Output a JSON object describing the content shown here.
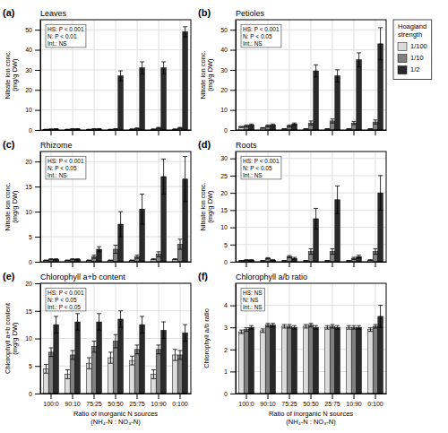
{
  "chart_data": [
    {
      "type": "bar",
      "title": "Leaves",
      "annotations": [
        "(a)",
        "HS: P < 0.001\nN: P < 0.01\nInt.: NS"
      ],
      "ylabel": "Nitrate ion conc.\n(mg/g DW)",
      "categories": [
        "100:0",
        "90:10",
        "75:25",
        "50:50",
        "25:75",
        "10:90",
        "0:100"
      ],
      "series": [
        {
          "name": "1/100",
          "color": "#dcdcdc",
          "values": [
            0.3,
            0.3,
            0.3,
            0.3,
            0.4,
            0.4,
            0.4
          ],
          "errors": [
            0.05,
            0.05,
            0.05,
            0.05,
            0.1,
            0.1,
            0.1
          ]
        },
        {
          "name": "1/10",
          "color": "#808080",
          "values": [
            0.4,
            0.5,
            0.5,
            0.5,
            0.8,
            1.0,
            1.0
          ],
          "errors": [
            0.1,
            0.1,
            0.1,
            0.1,
            0.2,
            0.3,
            0.3
          ]
        },
        {
          "name": "1/2",
          "color": "#2a2a2a",
          "values": [
            0.5,
            0.5,
            0.5,
            27.0,
            31.0,
            31.0,
            49.0
          ],
          "errors": [
            0.1,
            0.1,
            0.2,
            2.5,
            3.0,
            3.0,
            2.5
          ]
        }
      ],
      "ylim": [
        0,
        55
      ],
      "yticks": [
        0,
        10,
        20,
        30,
        40,
        50
      ],
      "grid": true,
      "tick_labels": "y"
    },
    {
      "type": "bar",
      "title": "Petioles",
      "annotations": [
        "(b)",
        "HS: P < 0.001\nN: P < 0.05\nInt.: NS"
      ],
      "ylabel": "Nitrate ion conc.\n(mg/g DW)",
      "categories": [
        "100:0",
        "90:10",
        "75:25",
        "50:50",
        "25:75",
        "10:90",
        "0:100"
      ],
      "series": [
        {
          "name": "1/100",
          "color": "#dcdcdc",
          "values": [
            1.5,
            1.0,
            0.5,
            0.5,
            0.5,
            0.5,
            0.5
          ],
          "errors": [
            0.3,
            0.2,
            0.1,
            0.1,
            0.1,
            0.1,
            0.1
          ]
        },
        {
          "name": "1/10",
          "color": "#808080",
          "values": [
            2.0,
            2.0,
            2.0,
            3.5,
            4.5,
            3.5,
            4.0
          ],
          "errors": [
            0.5,
            0.5,
            0.5,
            1.0,
            1.0,
            0.8,
            1.0
          ]
        },
        {
          "name": "1/2",
          "color": "#2a2a2a",
          "values": [
            2.5,
            2.5,
            3.0,
            29.5,
            27.0,
            35.0,
            43.0
          ],
          "errors": [
            0.5,
            0.5,
            0.5,
            3.0,
            3.0,
            3.5,
            8.0
          ]
        }
      ],
      "ylim": [
        0,
        55
      ],
      "yticks": [
        0,
        10,
        20,
        30,
        40,
        50
      ],
      "grid": true,
      "tick_labels": "y",
      "legend": "right",
      "legend_title": "Hoagland\nstrength"
    },
    {
      "type": "bar",
      "title": "Rhizome",
      "annotations": [
        "(c)",
        "HS: P < 0.001\nN: P < 0.05\nInt.: NS"
      ],
      "ylabel": "Nitrate ion conc.\n(mg/g DW)",
      "categories": [
        "100:0",
        "90:10",
        "75:25",
        "50:50",
        "25:75",
        "10:90",
        "0:100"
      ],
      "series": [
        {
          "name": "1/100",
          "color": "#dcdcdc",
          "values": [
            0.3,
            0.3,
            0.3,
            0.3,
            0.3,
            0.5,
            0.5
          ],
          "errors": [
            0.05,
            0.05,
            0.05,
            0.05,
            0.05,
            0.1,
            0.1
          ]
        },
        {
          "name": "1/10",
          "color": "#808080",
          "values": [
            0.5,
            0.5,
            1.0,
            2.5,
            1.0,
            1.5,
            3.5
          ],
          "errors": [
            0.1,
            0.1,
            0.3,
            0.8,
            0.3,
            0.5,
            1.0
          ]
        },
        {
          "name": "1/2",
          "color": "#2a2a2a",
          "values": [
            0.5,
            0.5,
            2.5,
            7.5,
            10.5,
            17.0,
            16.5
          ],
          "errors": [
            0.1,
            0.1,
            0.5,
            2.5,
            3.0,
            3.5,
            4.5
          ]
        }
      ],
      "ylim": [
        0,
        22
      ],
      "yticks": [
        0,
        5,
        10,
        15,
        20
      ],
      "grid": true,
      "tick_labels": "y"
    },
    {
      "type": "bar",
      "title": "Roots",
      "annotations": [
        "(d)",
        "HS: P < 0.001\nN: P < 0.05\nInt.: NS"
      ],
      "ylabel": "Nitrate ion conc.\n(mg/g DW)",
      "categories": [
        "100:0",
        "90:10",
        "75:25",
        "50:50",
        "25:75",
        "10:90",
        "0:100"
      ],
      "series": [
        {
          "name": "1/100",
          "color": "#dcdcdc",
          "values": [
            0.3,
            0.3,
            0.3,
            0.3,
            0.3,
            0.3,
            0.5
          ],
          "errors": [
            0.05,
            0.05,
            0.05,
            0.05,
            0.05,
            0.05,
            0.1
          ]
        },
        {
          "name": "1/10",
          "color": "#808080",
          "values": [
            0.5,
            1.0,
            1.5,
            3.0,
            3.0,
            1.0,
            3.0
          ],
          "errors": [
            0.1,
            0.2,
            0.3,
            0.8,
            0.8,
            0.3,
            0.8
          ]
        },
        {
          "name": "1/2",
          "color": "#2a2a2a",
          "values": [
            0.5,
            0.5,
            1.0,
            12.5,
            18.0,
            1.5,
            20.0
          ],
          "errors": [
            0.1,
            0.1,
            0.3,
            3.0,
            4.0,
            0.4,
            5.0
          ]
        }
      ],
      "ylim": [
        0,
        32
      ],
      "yticks": [
        0,
        5,
        10,
        15,
        20,
        25,
        30
      ],
      "grid": true,
      "tick_labels": "y"
    },
    {
      "type": "bar",
      "title": "Chlorophyll a+b content",
      "annotations": [
        "(e)",
        "HS: P < 0.001\nN: P < 0.05\nInt.: P < 0.05"
      ],
      "ylabel": "Chlorophyll a+b content\n(mg/g DW)",
      "xlabel": "Ratio of inorganic N sources\n(NH₄-N : NO₃-N)",
      "categories": [
        "100:0",
        "90:10",
        "75:25",
        "50:50",
        "25:75",
        "10:90",
        "0:100"
      ],
      "series": [
        {
          "name": "1/100",
          "color": "#dcdcdc",
          "values": [
            4.5,
            3.5,
            5.5,
            6.5,
            6.0,
            3.5,
            7.0
          ],
          "errors": [
            0.8,
            0.8,
            1.0,
            1.0,
            0.8,
            0.8,
            1.0
          ]
        },
        {
          "name": "1/10",
          "color": "#808080",
          "values": [
            7.5,
            7.0,
            8.5,
            9.5,
            8.0,
            8.0,
            7.0
          ],
          "errors": [
            0.8,
            0.8,
            1.0,
            1.2,
            0.8,
            0.8,
            0.8
          ]
        },
        {
          "name": "1/2",
          "color": "#2a2a2a",
          "values": [
            12.5,
            13.0,
            13.0,
            13.5,
            12.5,
            11.5,
            11.0
          ],
          "errors": [
            1.5,
            1.5,
            1.5,
            1.5,
            1.5,
            1.5,
            1.5
          ]
        }
      ],
      "ylim": [
        0,
        20
      ],
      "yticks": [
        0,
        5,
        10,
        15,
        20
      ],
      "grid": true
    },
    {
      "type": "bar",
      "title": "Chlorophyll a/b ratio",
      "annotations": [
        "(f)",
        "HS: NS\nN: NS\nInt.: NS"
      ],
      "ylabel": "Chlorophyll a/b ratio",
      "xlabel": "Ratio of inorganic N sources\n(NH₄-N : NO₃-N)",
      "categories": [
        "100:0",
        "90:10",
        "75:25",
        "50:50",
        "25:75",
        "10:90",
        "0:100"
      ],
      "series": [
        {
          "name": "1/100",
          "color": "#dcdcdc",
          "values": [
            2.8,
            2.85,
            3.05,
            3.05,
            3.0,
            3.0,
            2.9
          ],
          "errors": [
            0.08,
            0.08,
            0.08,
            0.08,
            0.08,
            0.08,
            0.08
          ]
        },
        {
          "name": "1/10",
          "color": "#808080",
          "values": [
            2.9,
            3.1,
            3.05,
            3.1,
            3.05,
            3.0,
            3.05
          ],
          "errors": [
            0.08,
            0.08,
            0.08,
            0.08,
            0.08,
            0.08,
            0.08
          ]
        },
        {
          "name": "1/2",
          "color": "#2a2a2a",
          "values": [
            3.0,
            3.1,
            3.0,
            3.0,
            3.0,
            3.0,
            3.5
          ],
          "errors": [
            0.08,
            0.08,
            0.08,
            0.08,
            0.08,
            0.08,
            0.5
          ]
        }
      ],
      "ylim": [
        0,
        5
      ],
      "yticks": [
        0,
        1,
        2,
        3,
        4
      ],
      "grid": true
    }
  ]
}
